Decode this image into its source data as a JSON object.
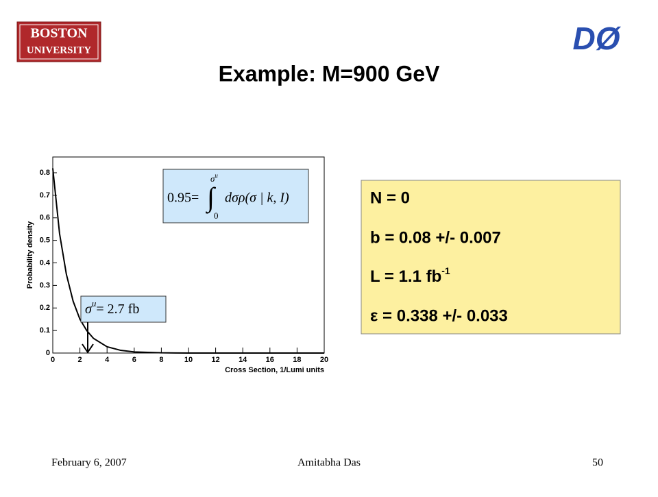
{
  "header": {
    "title": "Example: M=900 GeV",
    "logo_left": [
      "BOSTON",
      "UNIVERSITY"
    ],
    "logo_right": "DØ"
  },
  "chart_data": {
    "type": "line",
    "ylabel": "Probability density",
    "xlabel": "Cross Section, 1/Lumi units",
    "x": [
      0,
      0.5,
      1,
      1.5,
      2,
      2.5,
      3,
      4,
      5,
      6,
      8,
      10,
      20
    ],
    "values": [
      0.82,
      0.53,
      0.35,
      0.23,
      0.15,
      0.1,
      0.065,
      0.028,
      0.012,
      0.005,
      0.001,
      0,
      0
    ],
    "color": "#000000",
    "xlim": [
      0,
      20
    ],
    "ylim": [
      0,
      0.87
    ],
    "xticks": [
      0,
      2,
      4,
      6,
      8,
      10,
      12,
      14,
      16,
      18,
      20
    ],
    "yticks": [
      0,
      0.1,
      0.2,
      0.3,
      0.4,
      0.5,
      0.6,
      0.7,
      0.8
    ],
    "formula": {
      "lhs": "0.95=",
      "integral": "∫",
      "upper": "σ",
      "upper_sup": "u",
      "lower": "0",
      "integrand": "dσρ(σ | k, I)"
    },
    "result": {
      "symbol": "σ",
      "sup": "u",
      "rhs": "= 2.7 fb"
    }
  },
  "info_box": {
    "lines": [
      "N = 0",
      "b = 0.08 +/- 0.007",
      "L = 1.1 fb",
      "ε = 0.338 +/- 0.033"
    ],
    "line3_sup": "-1"
  },
  "footer": {
    "date": "February 6, 2007",
    "author": "Amitabha Das",
    "page": "50"
  }
}
